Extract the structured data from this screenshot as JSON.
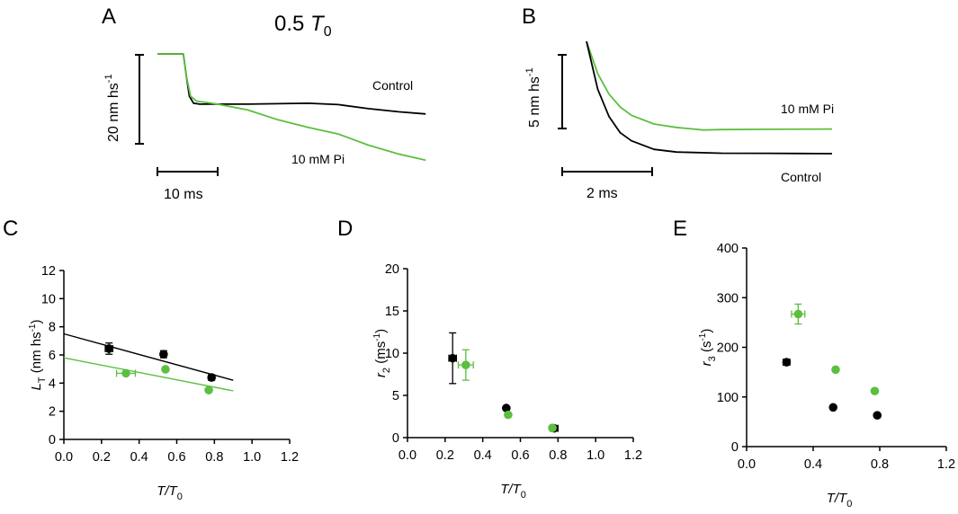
{
  "colors": {
    "control": "#000000",
    "pi": "#5bbf3f"
  },
  "chart_data": [
    {
      "panel": "A",
      "type": "line",
      "title": {
        "value": "0.5 ",
        "symbol": "T",
        "sub": "0"
      },
      "scale_bar_y": {
        "value": 20,
        "label": "20 nm hs",
        "sup": "-1"
      },
      "scale_bar_x": {
        "value": 10,
        "label": "10 ms"
      },
      "x_units": "ms",
      "y_units": "nm hs-1",
      "series": [
        {
          "name": "Control",
          "color": "#000000",
          "points": [
            [
              0,
              0
            ],
            [
              4.3,
              0
            ],
            [
              4.8,
              -5
            ],
            [
              5.3,
              -9.5
            ],
            [
              6,
              -11.1
            ],
            [
              7,
              -11.3
            ],
            [
              15,
              -11.3
            ],
            [
              25,
              -11.1
            ],
            [
              30,
              -11.4
            ],
            [
              35,
              -12.3
            ],
            [
              40,
              -13
            ],
            [
              44.5,
              -13.5
            ]
          ]
        },
        {
          "name": "10 mM Pi",
          "color": "#5bbf3f",
          "points": [
            [
              0,
              0
            ],
            [
              4.3,
              0
            ],
            [
              4.8,
              -5
            ],
            [
              5.5,
              -9.5
            ],
            [
              6.5,
              -10.6
            ],
            [
              10,
              -11.3
            ],
            [
              15,
              -12.6
            ],
            [
              20,
              -14.8
            ],
            [
              25,
              -16.5
            ],
            [
              30,
              -18
            ],
            [
              35,
              -20.5
            ],
            [
              40,
              -22.5
            ],
            [
              44.5,
              -23.9
            ]
          ]
        }
      ]
    },
    {
      "panel": "B",
      "type": "line",
      "scale_bar_y": {
        "value": 5,
        "label": "5 nm hs",
        "sup": "-1"
      },
      "scale_bar_x": {
        "value": 2,
        "label": "2 ms"
      },
      "x_units": "ms",
      "y_units": "nm hs-1",
      "series": [
        {
          "name": "10 mM Pi",
          "color": "#5bbf3f",
          "points": [
            [
              0,
              0
            ],
            [
              0.25,
              -2.19
            ],
            [
              0.5,
              -3.58
            ],
            [
              0.75,
              -4.46
            ],
            [
              1,
              -5.02
            ],
            [
              1.5,
              -5.61
            ],
            [
              2,
              -5.84
            ],
            [
              2.6,
              -6.02
            ],
            [
              3,
              -5.99
            ],
            [
              4,
              -5.97
            ],
            [
              5.46,
              -5.95
            ]
          ]
        },
        {
          "name": "Control",
          "color": "#000000",
          "points": [
            [
              0,
              0
            ],
            [
              0.25,
              -3.25
            ],
            [
              0.5,
              -5.1
            ],
            [
              0.75,
              -6.2
            ],
            [
              1,
              -6.75
            ],
            [
              1.5,
              -7.33
            ],
            [
              2,
              -7.51
            ],
            [
              3,
              -7.59
            ],
            [
              4,
              -7.6
            ],
            [
              5.46,
              -7.62
            ]
          ]
        }
      ]
    },
    {
      "panel": "C",
      "type": "scatter",
      "xlabel": {
        "main": "T/T",
        "sub": "0"
      },
      "ylabel": {
        "main": "L",
        "sub": "T",
        "rest": " (nm hs",
        "sup": "-1",
        "end": ")"
      },
      "xlim": [
        0,
        1.2
      ],
      "ylim": [
        0,
        12
      ],
      "xticks": [
        "0.0",
        "0.2",
        "0.4",
        "0.6",
        "0.8",
        "1.0",
        "1.2"
      ],
      "yticks": [
        "0",
        "2",
        "4",
        "6",
        "8",
        "10",
        "12"
      ],
      "series": [
        {
          "name": "Control",
          "color": "#000000",
          "points": [
            {
              "x": 0.24,
              "y": 6.45,
              "yerr": 0.4,
              "xerr": 0.02
            },
            {
              "x": 0.53,
              "y": 6.05,
              "yerr": 0.25
            },
            {
              "x": 0.785,
              "y": 4.4,
              "yerr": 0.2
            }
          ],
          "fit": [
            [
              0,
              7.5
            ],
            [
              0.9,
              4.2
            ]
          ]
        },
        {
          "name": "10 mM Pi",
          "color": "#5bbf3f",
          "points": [
            {
              "x": 0.33,
              "y": 4.7,
              "xerr": 0.05
            },
            {
              "x": 0.54,
              "y": 4.98
            },
            {
              "x": 0.77,
              "y": 3.5
            }
          ],
          "fit": [
            [
              0,
              5.8
            ],
            [
              0.9,
              3.45
            ]
          ]
        }
      ]
    },
    {
      "panel": "D",
      "type": "scatter",
      "xlabel": {
        "main": "T/T",
        "sub": "0"
      },
      "ylabel": {
        "main": "r",
        "sub": "2",
        "rest": " (ms",
        "sup": "-1",
        "end": ")"
      },
      "xlim": [
        0,
        1.2
      ],
      "ylim": [
        0,
        20
      ],
      "xticks": [
        "0.0",
        "0.2",
        "0.4",
        "0.6",
        "0.8",
        "1.0",
        "1.2"
      ],
      "yticks": [
        "0",
        "5",
        "10",
        "15",
        "20"
      ],
      "series": [
        {
          "name": "Control",
          "color": "#000000",
          "points": [
            {
              "x": 0.24,
              "y": 9.4,
              "yerr": 3.0,
              "xerr": 0.02
            },
            {
              "x": 0.525,
              "y": 3.5
            },
            {
              "x": 0.78,
              "y": 1.1,
              "xerr": 0.02
            }
          ]
        },
        {
          "name": "10 mM Pi",
          "color": "#5bbf3f",
          "points": [
            {
              "x": 0.31,
              "y": 8.6,
              "yerr": 1.8,
              "xerr": 0.04
            },
            {
              "x": 0.535,
              "y": 2.7
            },
            {
              "x": 0.77,
              "y": 1.15
            }
          ]
        }
      ]
    },
    {
      "panel": "E",
      "type": "scatter",
      "xlabel": {
        "main": "T/T",
        "sub": "0"
      },
      "ylabel": {
        "main": "r",
        "sub": "3",
        "rest": " (s",
        "sup": "-1",
        "end": ")"
      },
      "xlim": [
        0,
        1.2
      ],
      "ylim": [
        0,
        400
      ],
      "xticks": [
        "0.0",
        "0.4",
        "0.8",
        "1.2"
      ],
      "yticks": [
        "0",
        "100",
        "200",
        "300",
        "400"
      ],
      "series": [
        {
          "name": "Control",
          "color": "#000000",
          "points": [
            {
              "x": 0.24,
              "y": 170,
              "xerr": 0.02
            },
            {
              "x": 0.52,
              "y": 79
            },
            {
              "x": 0.785,
              "y": 63
            }
          ]
        },
        {
          "name": "10 mM Pi",
          "color": "#5bbf3f",
          "points": [
            {
              "x": 0.31,
              "y": 267,
              "yerr": 20,
              "xerr": 0.04
            },
            {
              "x": 0.535,
              "y": 155
            },
            {
              "x": 0.77,
              "y": 112
            }
          ]
        }
      ]
    }
  ]
}
